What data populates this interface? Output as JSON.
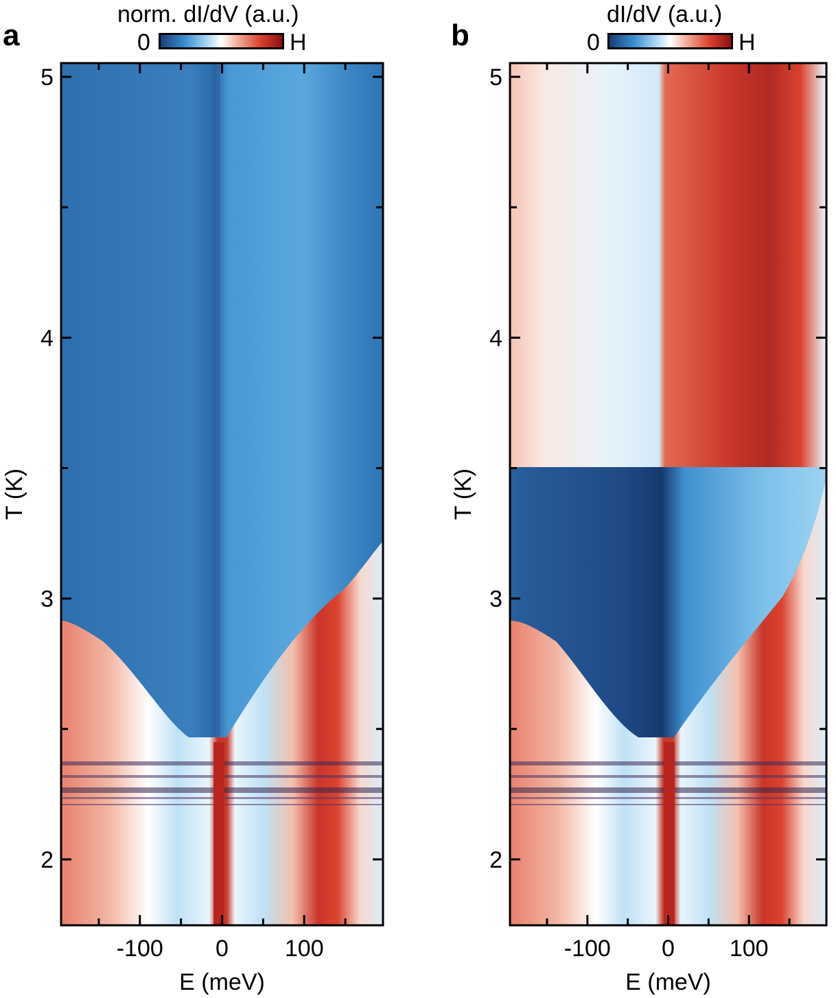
{
  "chart_data": [
    {
      "panel": "a",
      "type": "heatmap",
      "colorbar": {
        "title": "norm. dI/dV (a.u.)",
        "min_label": "0",
        "max_label": "H"
      },
      "xlabel": "E (meV)",
      "ylabel": "T (K)",
      "xlim": [
        -195,
        195
      ],
      "ylim": [
        1.75,
        5.05
      ],
      "xticks": [
        -100,
        0,
        100
      ],
      "yticks": [
        2,
        3,
        4,
        5
      ],
      "features": {
        "gap_closing_T": 3.45,
        "gap_edge_at_T": [
          [
            3.45,
            195
          ],
          [
            3.0,
            165
          ],
          [
            2.6,
            60
          ],
          [
            2.48,
            20
          ],
          [
            2.48,
            -40
          ],
          [
            2.6,
            -90
          ],
          [
            2.9,
            -195
          ]
        ],
        "coherence_peak_E": [
          -160,
          0,
          120
        ],
        "noisy_band_T": [
          2.2,
          2.4
        ]
      }
    },
    {
      "panel": "b",
      "type": "heatmap",
      "colorbar": {
        "title": "dI/dV (a.u.)",
        "min_label": "0",
        "max_label": "H"
      },
      "xlabel": "E (meV)",
      "ylabel": "T (K)",
      "xlim": [
        -195,
        195
      ],
      "ylim": [
        1.75,
        5.05
      ],
      "xticks": [
        -100,
        0,
        100
      ],
      "yticks": [
        2,
        3,
        4,
        5
      ],
      "features": {
        "transition_T": 3.5,
        "high_T_red_region_E": [
          -10,
          175
        ],
        "gap_edge_at_T": [
          [
            3.45,
            195
          ],
          [
            3.0,
            165
          ],
          [
            2.6,
            60
          ],
          [
            2.48,
            20
          ],
          [
            2.48,
            -40
          ],
          [
            2.6,
            -90
          ],
          [
            2.9,
            -195
          ]
        ],
        "coherence_peak_E": [
          -160,
          0,
          120
        ],
        "noisy_band_T": [
          2.2,
          2.4
        ]
      }
    }
  ],
  "colors": {
    "deep_blue": "#1a3d75",
    "mid_blue": "#3b8fce",
    "light_blue": "#a9d6f2",
    "white": "#ffffff",
    "light_red": "#f2b7a5",
    "red": "#d9432f",
    "dark_red": "#8c0f14"
  }
}
